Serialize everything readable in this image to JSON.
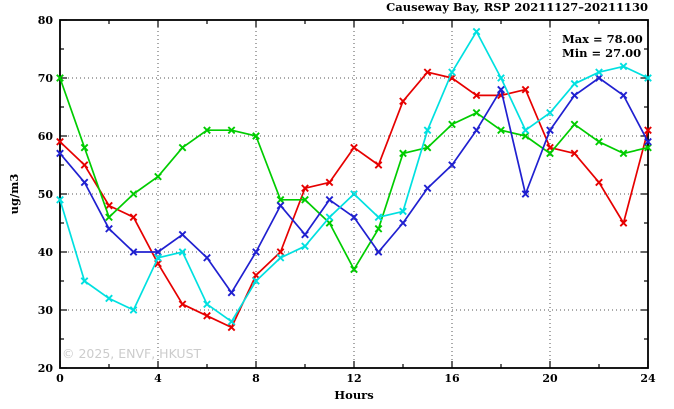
{
  "title": "Causeway Bay, RSP 20211127–20211130",
  "annotation": {
    "max_label": "Max = 78.00",
    "min_label": "Min = 27.00"
  },
  "watermark": "© 2025, ENVF, HKUST",
  "colors": {
    "frame": "#000000",
    "grid": "#555555",
    "series_red": "#e60000",
    "series_green": "#00cc00",
    "series_blue": "#2020d0",
    "series_cyan": "#00e0e0",
    "watermark": "#cccccc"
  },
  "chart_data": {
    "type": "line",
    "title": "Causeway Bay, RSP 20211127–20211130",
    "xlabel": "Hours",
    "ylabel": "ug/m3",
    "xlim": [
      0,
      24
    ],
    "ylim": [
      20,
      80
    ],
    "x_ticks": [
      0,
      4,
      8,
      12,
      16,
      20,
      24
    ],
    "y_ticks": [
      20,
      30,
      40,
      50,
      60,
      70,
      80
    ],
    "x_minor_step": 2,
    "y_minor_step": 5,
    "grid": true,
    "legend_position": "none",
    "stat_max": 78.0,
    "stat_min": 27.0,
    "x": [
      0,
      1,
      2,
      3,
      4,
      5,
      6,
      7,
      8,
      9,
      10,
      11,
      12,
      13,
      14,
      15,
      16,
      17,
      18,
      19,
      20,
      21,
      22,
      23,
      24
    ],
    "series": [
      {
        "name": "series-red",
        "color": "#e60000",
        "values": [
          59,
          55,
          48,
          46,
          38,
          31,
          29,
          27,
          36,
          40,
          51,
          52,
          58,
          55,
          66,
          71,
          70,
          67,
          67,
          68,
          58,
          57,
          52,
          45,
          61
        ]
      },
      {
        "name": "series-green",
        "color": "#00cc00",
        "values": [
          70,
          58,
          46,
          50,
          53,
          58,
          61,
          61,
          60,
          49,
          49,
          45,
          37,
          44,
          57,
          58,
          62,
          64,
          61,
          60,
          57,
          62,
          59,
          57,
          58
        ]
      },
      {
        "name": "series-blue",
        "color": "#2020d0",
        "values": [
          57,
          52,
          44,
          40,
          40,
          43,
          39,
          33,
          40,
          48,
          43,
          49,
          46,
          40,
          45,
          51,
          55,
          61,
          68,
          50,
          61,
          67,
          70,
          67,
          59
        ]
      },
      {
        "name": "series-cyan",
        "color": "#00e0e0",
        "values": [
          49,
          35,
          32,
          30,
          39,
          40,
          31,
          28,
          35,
          39,
          41,
          46,
          50,
          46,
          47,
          61,
          71,
          78,
          70,
          61,
          64,
          69,
          71,
          72,
          70
        ]
      }
    ]
  }
}
